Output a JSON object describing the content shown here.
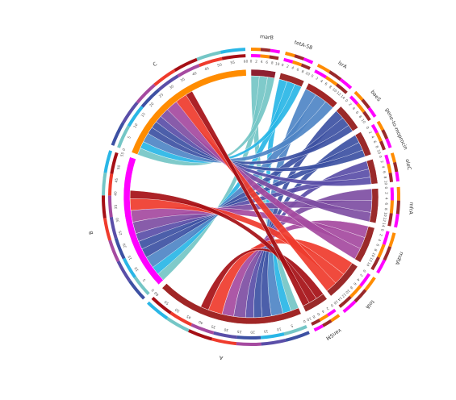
{
  "chart_data": {
    "type": "chord",
    "title": "",
    "sectors": [
      {
        "name": "marB",
        "value": 10,
        "group": "gene",
        "color": "#8e2030"
      },
      {
        "name": "tetA-58",
        "value": 10,
        "group": "gene",
        "color": "#9a2a2a"
      },
      {
        "name": "lsrA",
        "value": 14,
        "group": "gene",
        "color": "#a02626"
      },
      {
        "name": "baeS",
        "value": 11,
        "group": "gene",
        "color": "#9a2a2a"
      },
      {
        "name": "gene-to-moprocin",
        "value": 10,
        "group": "gene",
        "color": "#9a2a2a"
      },
      {
        "name": "oleC",
        "value": 10,
        "group": "gene",
        "color": "#9a2a2a"
      },
      {
        "name": "mfrA",
        "value": 14,
        "group": "gene",
        "color": "#9a2a2a"
      },
      {
        "name": "mdtA",
        "value": 15,
        "group": "gene",
        "color": "#9a2a2a"
      },
      {
        "name": "tolA",
        "value": 16,
        "group": "gene",
        "color": "#9a2a2a"
      },
      {
        "name": "vanSM",
        "value": 10,
        "group": "gene",
        "color": "#9a2a2a"
      },
      {
        "name": "A",
        "value": 60,
        "group": "group",
        "color": "#a02626"
      },
      {
        "name": "B",
        "value": 55,
        "group": "group",
        "color": "#ff00ff"
      },
      {
        "name": "C",
        "value": 60,
        "group": "group",
        "color": "#ff8c00"
      }
    ],
    "links": [
      {
        "source": "marB",
        "target": "A",
        "value": 3.5,
        "color": "#74c6c6"
      },
      {
        "source": "marB",
        "target": "B",
        "value": 3.5,
        "color": "#74c6c6"
      },
      {
        "source": "marB",
        "target": "C",
        "value": 3.0,
        "color": "#74c6c6"
      },
      {
        "source": "tetA-58",
        "target": "A",
        "value": 3.5,
        "color": "#29b6e6"
      },
      {
        "source": "tetA-58",
        "target": "B",
        "value": 3.5,
        "color": "#29b6e6"
      },
      {
        "source": "tetA-58",
        "target": "C",
        "value": 3.0,
        "color": "#29b6e6"
      },
      {
        "source": "lsrA",
        "target": "A",
        "value": 5.0,
        "color": "#4f86c6"
      },
      {
        "source": "lsrA",
        "target": "B",
        "value": 5.0,
        "color": "#4f86c6"
      },
      {
        "source": "lsrA",
        "target": "C",
        "value": 4.0,
        "color": "#4f86c6"
      },
      {
        "source": "baeS",
        "target": "A",
        "value": 4.0,
        "color": "#3d51a3"
      },
      {
        "source": "baeS",
        "target": "B",
        "value": 4.0,
        "color": "#3d51a3"
      },
      {
        "source": "baeS",
        "target": "C",
        "value": 3.0,
        "color": "#3d51a3"
      },
      {
        "source": "gene-to-moprocin",
        "target": "A",
        "value": 3.5,
        "color": "#3d51a3"
      },
      {
        "source": "gene-to-moprocin",
        "target": "B",
        "value": 3.5,
        "color": "#3d51a3"
      },
      {
        "source": "gene-to-moprocin",
        "target": "C",
        "value": 3.0,
        "color": "#3d51a3"
      },
      {
        "source": "oleC",
        "target": "A",
        "value": 3.5,
        "color": "#5a4ea8"
      },
      {
        "source": "oleC",
        "target": "B",
        "value": 3.5,
        "color": "#5a4ea8"
      },
      {
        "source": "oleC",
        "target": "C",
        "value": 3.0,
        "color": "#5a4ea8"
      },
      {
        "source": "mfrA",
        "target": "A",
        "value": 5.0,
        "color": "#7e4ea3"
      },
      {
        "source": "mfrA",
        "target": "B",
        "value": 5.0,
        "color": "#7e4ea3"
      },
      {
        "source": "mfrA",
        "target": "C",
        "value": 4.0,
        "color": "#7e4ea3"
      },
      {
        "source": "mdtA",
        "target": "A",
        "value": 5.0,
        "color": "#a54aa0"
      },
      {
        "source": "mdtA",
        "target": "B",
        "value": 5.0,
        "color": "#a54aa0"
      },
      {
        "source": "mdtA",
        "target": "C",
        "value": 5.0,
        "color": "#a54aa0"
      },
      {
        "source": "tolA",
        "target": "A",
        "value": 6.0,
        "color": "#ef3b2c"
      },
      {
        "source": "tolA",
        "target": "B",
        "value": 5.0,
        "color": "#ef3b2c"
      },
      {
        "source": "tolA",
        "target": "C",
        "value": 5.0,
        "color": "#ef3b2c"
      },
      {
        "source": "vanSM",
        "target": "A",
        "value": 3.5,
        "color": "#a50f15"
      },
      {
        "source": "vanSM",
        "target": "B",
        "value": 3.5,
        "color": "#a50f15"
      },
      {
        "source": "vanSM",
        "target": "C",
        "value": 3.0,
        "color": "#a50f15"
      }
    ],
    "tick_step": 2,
    "group_tick_step": 5,
    "legend": "none",
    "grid": false
  }
}
